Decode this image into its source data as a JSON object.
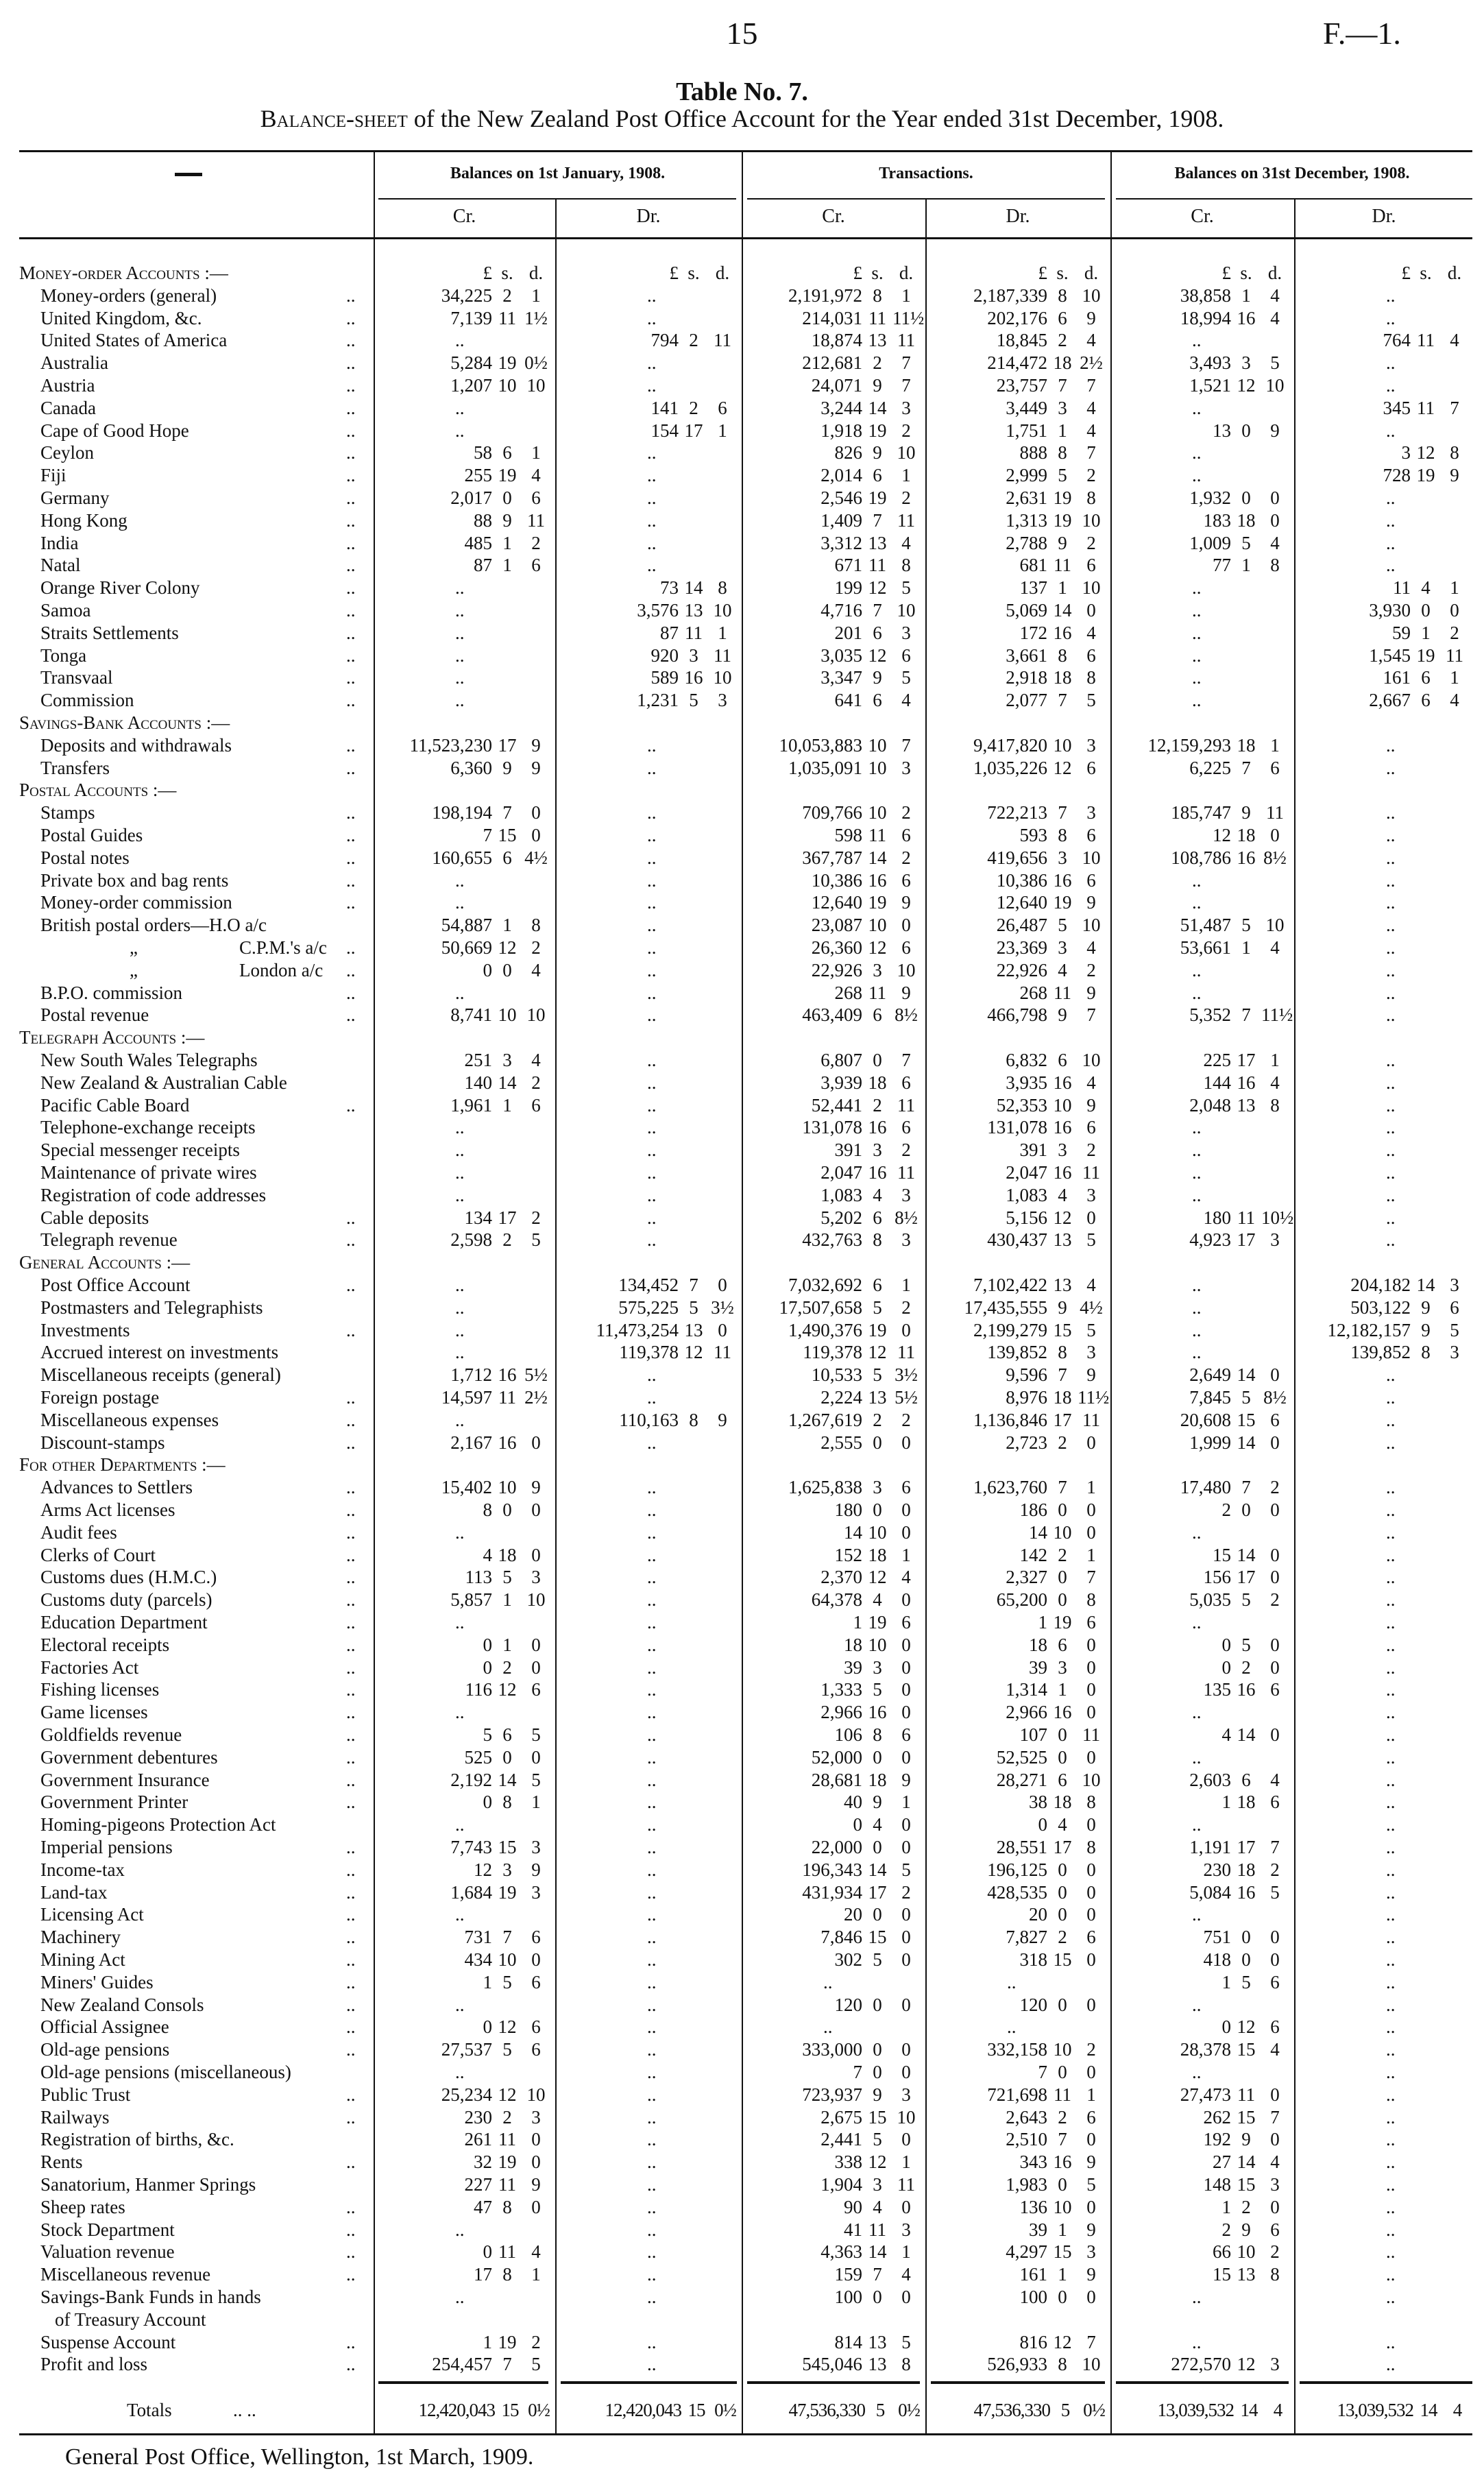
{
  "page_number": "15",
  "document_ref": "F.—1.",
  "title": "Table No. 7.",
  "subtitle_lead": "Balance-sheet",
  "subtitle_rest": " of the New Zealand Post Office Account for the Year ended 31st December, 1908.",
  "header": {
    "corner": "—",
    "groups": [
      "Balances on 1st January, 1908.",
      "Transactions.",
      "Balances on 31st December, 1908."
    ],
    "subcols": [
      "Cr.",
      "Dr.",
      "Cr.",
      "Dr.",
      "Cr.",
      "Dr."
    ],
    "units": [
      "£",
      "s.",
      "d."
    ]
  },
  "sections": [
    {
      "title": "Money-order Accounts :—",
      "rows": [
        [
          "Money-orders (general)",
          "34,225 2 1",
          "..",
          "2,191,972 8 1",
          "2,187,339 8 10",
          "38,858 1 4",
          ".."
        ],
        [
          "United Kingdom, &c.",
          "7,139 11 1½",
          "..",
          "214,031 11 11½",
          "202,176 6 9",
          "18,994 16 4",
          ".."
        ],
        [
          "United States of America",
          "..",
          "794 2 11",
          "18,874 13 11",
          "18,845 2 4",
          "..",
          "764 11 4"
        ],
        [
          "Australia",
          "5,284 19 0½",
          "..",
          "212,681 2 7",
          "214,472 18 2½",
          "3,493 3 5",
          ".."
        ],
        [
          "Austria",
          "1,207 10 10",
          "..",
          "24,071 9 7",
          "23,757 7 7",
          "1,521 12 10",
          ".."
        ],
        [
          "Canada",
          "..",
          "141 2 6",
          "3,244 14 3",
          "3,449 3 4",
          "..",
          "345 11 7"
        ],
        [
          "Cape of Good Hope",
          "..",
          "154 17 1",
          "1,918 19 2",
          "1,751 1 4",
          "13 0 9",
          ".."
        ],
        [
          "Ceylon",
          "58 6 1",
          "..",
          "826 9 10",
          "888 8 7",
          "..",
          "3 12 8"
        ],
        [
          "Fiji",
          "255 19 4",
          "..",
          "2,014 6 1",
          "2,999 5 2",
          "..",
          "728 19 9"
        ],
        [
          "Germany",
          "2,017 0 6",
          "..",
          "2,546 19 2",
          "2,631 19 8",
          "1,932 0 0",
          ".."
        ],
        [
          "Hong Kong",
          "88 9 11",
          "..",
          "1,409 7 11",
          "1,313 19 10",
          "183 18 0",
          ".."
        ],
        [
          "India",
          "485 1 2",
          "..",
          "3,312 13 4",
          "2,788 9 2",
          "1,009 5 4",
          ".."
        ],
        [
          "Natal",
          "87 1 6",
          "..",
          "671 11 8",
          "681 11 6",
          "77 1 8",
          ".."
        ],
        [
          "Orange River Colony",
          "..",
          "73 14 8",
          "199 12 5",
          "137 1 10",
          "..",
          "11 4 1"
        ],
        [
          "Samoa",
          "..",
          "3,576 13 10",
          "4,716 7 10",
          "5,069 14 0",
          "..",
          "3,930 0 0"
        ],
        [
          "Straits Settlements",
          "..",
          "87 11 1",
          "201 6 3",
          "172 16 4",
          "..",
          "59 1 2"
        ],
        [
          "Tonga",
          "..",
          "920 3 11",
          "3,035 12 6",
          "3,661 8 6",
          "..",
          "1,545 19 11"
        ],
        [
          "Transvaal",
          "..",
          "589 16 10",
          "3,347 9 5",
          "2,918 18 8",
          "..",
          "161 6 1"
        ],
        [
          "Commission",
          "..",
          "1,231 5 3",
          "641 6 4",
          "2,077 7 5",
          "..",
          "2,667 6 4"
        ]
      ]
    },
    {
      "title": "Savings-Bank Accounts :—",
      "rows": [
        [
          "Deposits and withdrawals",
          "11,523,230 17 9",
          "..",
          "10,053,883 10 7",
          "9,417,820 10 3",
          "12,159,293 18 1",
          ".."
        ],
        [
          "Transfers",
          "6,360 9 9",
          "..",
          "1,035,091 10 3",
          "1,035,226 12 6",
          "6,225 7 6",
          ".."
        ]
      ]
    },
    {
      "title": "Postal Accounts :—",
      "rows": [
        [
          "Stamps",
          "198,194 7 0",
          "..",
          "709,766 10 2",
          "722,213 7 3",
          "185,747 9 11",
          ".."
        ],
        [
          "Postal Guides",
          "7 15 0",
          "..",
          "598 11 6",
          "593 8 6",
          "12 18 0",
          ".."
        ],
        [
          "Postal notes",
          "160,655 6 4½",
          "..",
          "367,787 14 2",
          "419,656 3 10",
          "108,786 16 8½",
          ".."
        ],
        [
          "Private box and bag rents",
          "..",
          "..",
          "10,386 16 6",
          "10,386 16 6",
          "..",
          ".."
        ],
        [
          "Money-order commission",
          "..",
          "..",
          "12,640 19 9",
          "12,640 19 9",
          "..",
          ".."
        ],
        [
          "British postal orders—H.O a/c",
          "54,887 1 8",
          "..",
          "23,087 10 0",
          "26,487 5 10",
          "51,487 5 10",
          ".."
        ],
        [
          "„ C.P.M.'s a/c",
          "50,669 12 2",
          "..",
          "26,360 12 6",
          "23,369 3 4",
          "53,661 1 4",
          ".."
        ],
        [
          "„ London a/c",
          "0 0 4",
          "..",
          "22,926 3 10",
          "22,926 4 2",
          "..",
          ".."
        ],
        [
          "B.P.O. commission",
          "..",
          "..",
          "268 11 9",
          "268 11 9",
          "..",
          ".."
        ],
        [
          "Postal revenue",
          "8,741 10 10",
          "..",
          "463,409 6 8½",
          "466,798 9 7",
          "5,352 7 11½",
          ".."
        ]
      ]
    },
    {
      "title": "Telegraph Accounts :—",
      "rows": [
        [
          "New South Wales Telegraphs",
          "251 3 4",
          "..",
          "6,807 0 7",
          "6,832 6 10",
          "225 17 1",
          ".."
        ],
        [
          "New Zealand & Australian Cable",
          "140 14 2",
          "..",
          "3,939 18 6",
          "3,935 16 4",
          "144 16 4",
          ".."
        ],
        [
          "Pacific Cable Board",
          "1,961 1 6",
          "..",
          "52,441 2 11",
          "52,353 10 9",
          "2,048 13 8",
          ".."
        ],
        [
          "Telephone-exchange receipts",
          "..",
          "..",
          "131,078 16 6",
          "131,078 16 6",
          "..",
          ".."
        ],
        [
          "Special messenger receipts",
          "..",
          "..",
          "391 3 2",
          "391 3 2",
          "..",
          ".."
        ],
        [
          "Maintenance of private wires",
          "..",
          "..",
          "2,047 16 11",
          "2,047 16 11",
          "..",
          ".."
        ],
        [
          "Registration of code addresses",
          "..",
          "..",
          "1,083 4 3",
          "1,083 4 3",
          "..",
          ".."
        ],
        [
          "Cable deposits",
          "134 17 2",
          "..",
          "5,202 6 8½",
          "5,156 12 0",
          "180 11 10½",
          ".."
        ],
        [
          "Telegraph revenue",
          "2,598 2 5",
          "..",
          "432,763 8 3",
          "430,437 13 5",
          "4,923 17 3",
          ".."
        ]
      ]
    },
    {
      "title": "General Accounts :—",
      "rows": [
        [
          "Post Office Account",
          "..",
          "134,452 7 0",
          "7,032,692 6 1",
          "7,102,422 13 4",
          "..",
          "204,182 14 3"
        ],
        [
          "Postmasters and Telegraphists",
          "..",
          "575,225 5 3½",
          "17,507,658 5 2",
          "17,435,555 9 4½",
          "..",
          "503,122 9 6"
        ],
        [
          "Investments",
          "..",
          "11,473,254 13 0",
          "1,490,376 19 0",
          "2,199,279 15 5",
          "..",
          "12,182,157 9 5"
        ],
        [
          "Accrued interest on investments",
          "..",
          "119,378 12 11",
          "119,378 12 11",
          "139,852 8 3",
          "..",
          "139,852 8 3"
        ],
        [
          "Miscellaneous receipts (general)",
          "1,712 16 5½",
          "..",
          "10,533 5 3½",
          "9,596 7 9",
          "2,649 14 0",
          ".."
        ],
        [
          "Foreign postage",
          "14,597 11 2½",
          "..",
          "2,224 13 5½",
          "8,976 18 11½",
          "7,845 5 8½",
          ".."
        ],
        [
          "Miscellaneous expenses",
          "..",
          "110,163 8 9",
          "1,267,619 2 2",
          "1,136,846 17 11",
          "20,608 15 6",
          ".."
        ],
        [
          "Discount-stamps",
          "2,167 16 0",
          "..",
          "2,555 0 0",
          "2,723 2 0",
          "1,999 14 0",
          ".."
        ]
      ]
    },
    {
      "title": "For other Departments :—",
      "rows": [
        [
          "Advances to Settlers",
          "15,402 10 9",
          "..",
          "1,625,838 3 6",
          "1,623,760 7 1",
          "17,480 7 2",
          ".."
        ],
        [
          "Arms Act licenses",
          "8 0 0",
          "..",
          "180 0 0",
          "186 0 0",
          "2 0 0",
          ".."
        ],
        [
          "Audit fees",
          "..",
          "..",
          "14 10 0",
          "14 10 0",
          "..",
          ".."
        ],
        [
          "Clerks of Court",
          "4 18 0",
          "..",
          "152 18 1",
          "142 2 1",
          "15 14 0",
          ".."
        ],
        [
          "Customs dues (H.M.C.)",
          "113 5 3",
          "..",
          "2,370 12 4",
          "2,327 0 7",
          "156 17 0",
          ".."
        ],
        [
          "Customs duty (parcels)",
          "5,857 1 10",
          "..",
          "64,378 4 0",
          "65,200 0 8",
          "5,035 5 2",
          ".."
        ],
        [
          "Education Department",
          "..",
          "..",
          "1 19 6",
          "1 19 6",
          "..",
          ".."
        ],
        [
          "Electoral receipts",
          "0 1 0",
          "..",
          "18 10 0",
          "18 6 0",
          "0 5 0",
          ".."
        ],
        [
          "Factories Act",
          "0 2 0",
          "..",
          "39 3 0",
          "39 3 0",
          "0 2 0",
          ".."
        ],
        [
          "Fishing licenses",
          "116 12 6",
          "..",
          "1,333 5 0",
          "1,314 1 0",
          "135 16 6",
          ".."
        ],
        [
          "Game licenses",
          "..",
          "..",
          "2,966 16 0",
          "2,966 16 0",
          "..",
          ".."
        ],
        [
          "Goldfields revenue",
          "5 6 5",
          "..",
          "106 8 6",
          "107 0 11",
          "4 14 0",
          ".."
        ],
        [
          "Government debentures",
          "525 0 0",
          "..",
          "52,000 0 0",
          "52,525 0 0",
          "..",
          ".."
        ],
        [
          "Government Insurance",
          "2,192 14 5",
          "..",
          "28,681 18 9",
          "28,271 6 10",
          "2,603 6 4",
          ".."
        ],
        [
          "Government Printer",
          "0 8 1",
          "..",
          "40 9 1",
          "38 18 8",
          "1 18 6",
          ".."
        ],
        [
          "Homing-pigeons Protection Act",
          "..",
          "..",
          "0 4 0",
          "0 4 0",
          "..",
          ".."
        ],
        [
          "Imperial pensions",
          "7,743 15 3",
          "..",
          "22,000 0 0",
          "28,551 17 8",
          "1,191 17 7",
          ".."
        ],
        [
          "Income-tax",
          "12 3 9",
          "..",
          "196,343 14 5",
          "196,125 0 0",
          "230 18 2",
          ".."
        ],
        [
          "Land-tax",
          "1,684 19 3",
          "..",
          "431,934 17 2",
          "428,535 0 0",
          "5,084 16 5",
          ".."
        ],
        [
          "Licensing Act",
          "..",
          "..",
          "20 0 0",
          "20 0 0",
          "..",
          ".."
        ],
        [
          "Machinery",
          "731 7 6",
          "..",
          "7,846 15 0",
          "7,827 2 6",
          "751 0 0",
          ".."
        ],
        [
          "Mining Act",
          "434 10 0",
          "..",
          "302 5 0",
          "318 15 0",
          "418 0 0",
          ".."
        ],
        [
          "Miners' Guides",
          "1 5 6",
          "..",
          "..",
          "..",
          "1 5 6",
          ".."
        ],
        [
          "New Zealand Consols",
          "..",
          "..",
          "120 0 0",
          "120 0 0",
          "..",
          ".."
        ],
        [
          "Official Assignee",
          "0 12 6",
          "..",
          "..",
          "..",
          "0 12 6",
          ".."
        ],
        [
          "Old-age pensions",
          "27,537 5 6",
          "..",
          "333,000 0 0",
          "332,158 10 2",
          "28,378 15 4",
          ".."
        ],
        [
          "Old-age pensions (miscellaneous)",
          "..",
          "..",
          "7 0 0",
          "7 0 0",
          "..",
          ".."
        ],
        [
          "Public Trust",
          "25,234 12 10",
          "..",
          "723,937 9 3",
          "721,698 11 1",
          "27,473 11 0",
          ".."
        ],
        [
          "Railways",
          "230 2 3",
          "..",
          "2,675 15 10",
          "2,643 2 6",
          "262 15 7",
          ".."
        ],
        [
          "Registration of births, &c.",
          "261 11 0",
          "..",
          "2,441 5 0",
          "2,510 7 0",
          "192 9 0",
          ".."
        ],
        [
          "Rents",
          "32 19 0",
          "..",
          "338 12 1",
          "343 16 9",
          "27 14 4",
          ".."
        ],
        [
          "Sanatorium, Hanmer Springs",
          "227 11 9",
          "..",
          "1,904 3 11",
          "1,983 0 5",
          "148 15 3",
          ".."
        ],
        [
          "Sheep rates",
          "47 8 0",
          "..",
          "90 4 0",
          "136 10 0",
          "1 2 0",
          ".."
        ],
        [
          "Stock Department",
          "..",
          "..",
          "41 11 3",
          "39 1 9",
          "2 9 6",
          ".."
        ],
        [
          "Valuation revenue",
          "0 11 4",
          "..",
          "4,363 14 1",
          "4,297 15 3",
          "66 10 2",
          ".."
        ],
        [
          "Miscellaneous revenue",
          "17 8 1",
          "..",
          "159 7 4",
          "161 1 9",
          "15 13 8",
          ".."
        ],
        [
          "Savings-Bank Funds in hands|of Treasury Account",
          "..",
          "..",
          "100 0 0",
          "100 0 0",
          "..",
          ".."
        ],
        [
          "Suspense Account",
          "1 19 2",
          "..",
          "814 13 5",
          "816 12 7",
          "..",
          ".."
        ],
        [
          "Profit and loss",
          "254,457 7 5",
          "..",
          "545,046 13 8",
          "526,933 8 10",
          "272,570 12 3",
          ".."
        ]
      ]
    }
  ],
  "totals": [
    "Totals",
    "12,420,043 15 0½",
    "12,420,043 15 0½",
    "47,536,330 5 0½",
    "47,536,330 5 0½",
    "13,039,532 14 4",
    "13,039,532 14 4"
  ],
  "footer": "General Post Office, Wellington, 1st March, 1909."
}
